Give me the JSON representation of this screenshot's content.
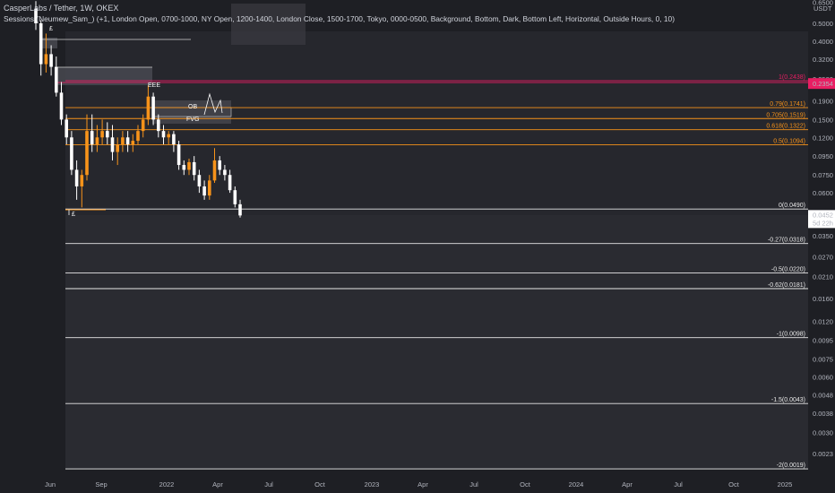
{
  "header": {
    "symbol_line": "CasperLabs / Tether, 1W, OKEX",
    "indicator_line": "Sessions (Neumew_Sam_) (+1, London Open, 0700-1000, NY Open, 1200-1400, London Close, 1500-1700, Tokyo, 0000-0500, Background, Bottom, Dark, Bottom Left, Horizontal, Outside Hours, 0, 10)"
  },
  "colors": {
    "background": "#1e1f24",
    "session_background": "#2a2b31",
    "bull": "#f7931a",
    "bear": "#ffffff",
    "fib_orange": "#f7931a",
    "fib_white": "#e8e8e8",
    "fib_red": "#e91e63",
    "price_tag": "#e91e63"
  },
  "chart_data": {
    "type": "candlestick",
    "title": "CasperLabs / Tether, 1W, OKEX",
    "y_scale": "log",
    "y_unit": "USDT",
    "y_ticks": [
      0.65,
      0.5,
      0.4,
      0.32,
      0.25,
      0.19,
      0.15,
      0.12,
      0.095,
      0.075,
      0.06,
      0.045,
      0.035,
      0.027,
      0.021,
      0.016,
      0.012,
      0.0095,
      0.0075,
      0.006,
      0.0048,
      0.0038,
      0.003,
      0.0023
    ],
    "y_tick_labels": [
      "0.6500",
      "0.5000",
      "0.4000",
      "0.3200",
      "0.2500",
      "0.1900",
      "0.1500",
      "0.1200",
      "0.0950",
      "0.0750",
      "0.0600",
      "0.0450",
      "0.0350",
      "0.0270",
      "0.0210",
      "0.0160",
      "0.0120",
      "0.0095",
      "0.0075",
      "0.0060",
      "0.0048",
      "0.0038",
      "0.0030",
      "0.0023"
    ],
    "x_labels": [
      "Jun",
      "Sep",
      "2022",
      "Apr",
      "Jul",
      "Oct",
      "2023",
      "Apr",
      "Jul",
      "Oct",
      "2024",
      "Apr",
      "Jul",
      "Oct",
      "2025"
    ],
    "fib_levels": [
      {
        "ratio": "1",
        "value": 0.2438,
        "label": "1(0.2438)",
        "color": "#e91e63"
      },
      {
        "ratio": "0.79",
        "value": 0.1741,
        "label": "0.79(0.1741)",
        "color": "#f7931a"
      },
      {
        "ratio": "0.705",
        "value": 0.1519,
        "label": "0.705(0.1519)",
        "color": "#f7931a"
      },
      {
        "ratio": "0.618",
        "value": 0.1322,
        "label": "0.618(0.1322)",
        "color": "#f7931a"
      },
      {
        "ratio": "0.5",
        "value": 0.1094,
        "label": "0.5(0.1094)",
        "color": "#f7931a"
      },
      {
        "ratio": "0",
        "value": 0.049,
        "label": "0(0.0490)",
        "color": "#e8e8e8"
      },
      {
        "ratio": "-0.27",
        "value": 0.0318,
        "label": "-0.27(0.0318)",
        "color": "#e8e8e8"
      },
      {
        "ratio": "-0.5",
        "value": 0.022,
        "label": "-0.5(0.0220)",
        "color": "#e8e8e8"
      },
      {
        "ratio": "-0.62",
        "value": 0.0181,
        "label": "-0.62(0.0181)",
        "color": "#e8e8e8"
      },
      {
        "ratio": "-1",
        "value": 0.0098,
        "label": "-1(0.0098)",
        "color": "#e8e8e8"
      },
      {
        "ratio": "-1.5",
        "value": 0.0043,
        "label": "-1.5(0.0043)",
        "color": "#e8e8e8"
      },
      {
        "ratio": "-2",
        "value": 0.0019,
        "label": "-2(0.0019)",
        "color": "#e8e8e8"
      }
    ],
    "price_tag": {
      "value": 0.2354,
      "label": "0.2354"
    },
    "last_price": {
      "value": 0.0452,
      "label": "0.0452",
      "countdown": "5d 22h"
    },
    "annotations": [
      {
        "text": "OB"
      },
      {
        "text": "FVG"
      },
      {
        "text": "EEE"
      },
      {
        "text": "£"
      }
    ],
    "candles": [
      {
        "o": 0.6,
        "h": 0.66,
        "l": 0.46,
        "c": 0.5
      },
      {
        "o": 0.5,
        "h": 0.52,
        "l": 0.26,
        "c": 0.3
      },
      {
        "o": 0.3,
        "h": 0.44,
        "l": 0.27,
        "c": 0.34
      },
      {
        "o": 0.34,
        "h": 0.38,
        "l": 0.26,
        "c": 0.29
      },
      {
        "o": 0.29,
        "h": 0.33,
        "l": 0.2,
        "c": 0.21
      },
      {
        "o": 0.21,
        "h": 0.24,
        "l": 0.14,
        "c": 0.15
      },
      {
        "o": 0.15,
        "h": 0.16,
        "l": 0.11,
        "c": 0.12
      },
      {
        "o": 0.12,
        "h": 0.13,
        "l": 0.075,
        "c": 0.08
      },
      {
        "o": 0.08,
        "h": 0.09,
        "l": 0.055,
        "c": 0.065
      },
      {
        "o": 0.065,
        "h": 0.08,
        "l": 0.05,
        "c": 0.075
      },
      {
        "o": 0.075,
        "h": 0.16,
        "l": 0.07,
        "c": 0.13
      },
      {
        "o": 0.13,
        "h": 0.16,
        "l": 0.1,
        "c": 0.11
      },
      {
        "o": 0.11,
        "h": 0.14,
        "l": 0.1,
        "c": 0.12
      },
      {
        "o": 0.12,
        "h": 0.15,
        "l": 0.11,
        "c": 0.13
      },
      {
        "o": 0.13,
        "h": 0.145,
        "l": 0.11,
        "c": 0.12
      },
      {
        "o": 0.12,
        "h": 0.14,
        "l": 0.09,
        "c": 0.1
      },
      {
        "o": 0.1,
        "h": 0.12,
        "l": 0.085,
        "c": 0.11
      },
      {
        "o": 0.11,
        "h": 0.13,
        "l": 0.1,
        "c": 0.12
      },
      {
        "o": 0.12,
        "h": 0.13,
        "l": 0.1,
        "c": 0.11
      },
      {
        "o": 0.11,
        "h": 0.125,
        "l": 0.1,
        "c": 0.115
      },
      {
        "o": 0.115,
        "h": 0.14,
        "l": 0.11,
        "c": 0.13
      },
      {
        "o": 0.13,
        "h": 0.16,
        "l": 0.12,
        "c": 0.15
      },
      {
        "o": 0.15,
        "h": 0.23,
        "l": 0.14,
        "c": 0.2
      },
      {
        "o": 0.2,
        "h": 0.21,
        "l": 0.14,
        "c": 0.15
      },
      {
        "o": 0.15,
        "h": 0.16,
        "l": 0.12,
        "c": 0.13
      },
      {
        "o": 0.13,
        "h": 0.14,
        "l": 0.11,
        "c": 0.12
      },
      {
        "o": 0.12,
        "h": 0.13,
        "l": 0.11,
        "c": 0.125
      },
      {
        "o": 0.125,
        "h": 0.13,
        "l": 0.1,
        "c": 0.11
      },
      {
        "o": 0.11,
        "h": 0.115,
        "l": 0.08,
        "c": 0.085
      },
      {
        "o": 0.085,
        "h": 0.09,
        "l": 0.075,
        "c": 0.08
      },
      {
        "o": 0.08,
        "h": 0.092,
        "l": 0.075,
        "c": 0.088
      },
      {
        "o": 0.088,
        "h": 0.095,
        "l": 0.07,
        "c": 0.075
      },
      {
        "o": 0.075,
        "h": 0.08,
        "l": 0.06,
        "c": 0.065
      },
      {
        "o": 0.065,
        "h": 0.07,
        "l": 0.055,
        "c": 0.058
      },
      {
        "o": 0.058,
        "h": 0.075,
        "l": 0.055,
        "c": 0.07
      },
      {
        "o": 0.07,
        "h": 0.105,
        "l": 0.068,
        "c": 0.09
      },
      {
        "o": 0.09,
        "h": 0.095,
        "l": 0.075,
        "c": 0.08
      },
      {
        "o": 0.08,
        "h": 0.085,
        "l": 0.07,
        "c": 0.075
      },
      {
        "o": 0.075,
        "h": 0.08,
        "l": 0.06,
        "c": 0.062
      },
      {
        "o": 0.062,
        "h": 0.065,
        "l": 0.05,
        "c": 0.052
      },
      {
        "o": 0.052,
        "h": 0.055,
        "l": 0.044,
        "c": 0.0452
      }
    ]
  }
}
